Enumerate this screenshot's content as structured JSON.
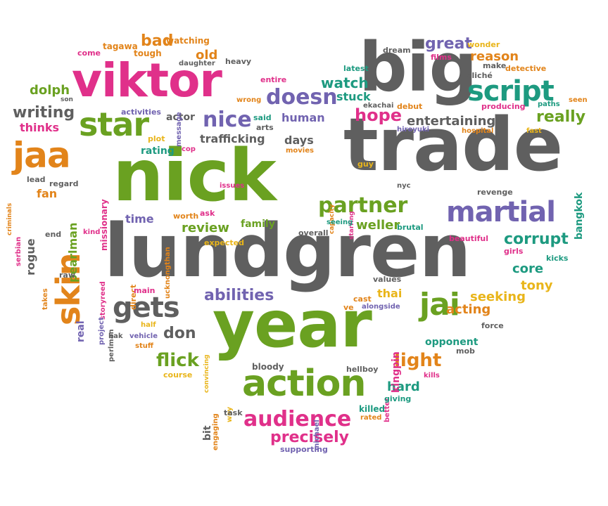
{
  "colors": {
    "gray": "#5f5f5f",
    "green": "#6aa121",
    "pink": "#e0308a",
    "purple": "#7163b0",
    "teal": "#1d9a80",
    "orange": "#e2841a",
    "yellow": "#e9b51a"
  },
  "words": [
    {
      "text": "viktor",
      "color": "pink"
    },
    {
      "text": "big",
      "color": "gray"
    },
    {
      "text": "trade",
      "color": "gray"
    },
    {
      "text": "nick",
      "color": "green"
    },
    {
      "text": "lundgren",
      "color": "gray"
    },
    {
      "text": "year",
      "color": "green"
    },
    {
      "text": "action",
      "color": "green"
    },
    {
      "text": "jaa",
      "color": "orange"
    },
    {
      "text": "skin",
      "color": "orange"
    },
    {
      "text": "star",
      "color": "green"
    },
    {
      "text": "script",
      "color": "teal"
    },
    {
      "text": "martial",
      "color": "purple"
    },
    {
      "text": "gets",
      "color": "gray"
    },
    {
      "text": "jai",
      "color": "green"
    },
    {
      "text": "audience",
      "color": "pink"
    },
    {
      "text": "partner",
      "color": "green"
    },
    {
      "text": "nice",
      "color": "purple"
    },
    {
      "text": "doesn",
      "color": "purple"
    },
    {
      "text": "hope",
      "color": "pink"
    },
    {
      "text": "flick",
      "color": "green"
    },
    {
      "text": "light",
      "color": "orange"
    },
    {
      "text": "abilities",
      "color": "purple"
    },
    {
      "text": "corrupt",
      "color": "teal"
    },
    {
      "text": "precisely",
      "color": "pink"
    },
    {
      "text": "really",
      "color": "green"
    },
    {
      "text": "writing",
      "color": "gray"
    },
    {
      "text": "great",
      "color": "purple"
    },
    {
      "text": "reason",
      "color": "orange"
    },
    {
      "text": "watch",
      "color": "teal"
    },
    {
      "text": "entertaining",
      "color": "gray"
    },
    {
      "text": "review",
      "color": "green"
    },
    {
      "text": "weller",
      "color": "green"
    },
    {
      "text": "don",
      "color": "gray"
    },
    {
      "text": "hard",
      "color": "teal"
    },
    {
      "text": "core",
      "color": "teal"
    },
    {
      "text": "tony",
      "color": "yellow"
    },
    {
      "text": "acting",
      "color": "orange"
    },
    {
      "text": "seeking",
      "color": "yellow"
    },
    {
      "text": "human",
      "color": "purple"
    },
    {
      "text": "days",
      "color": "gray"
    },
    {
      "text": "dolph",
      "color": "green"
    },
    {
      "text": "thinks",
      "color": "pink"
    },
    {
      "text": "bad",
      "color": "orange"
    },
    {
      "text": "old",
      "color": "orange"
    },
    {
      "text": "stuck",
      "color": "teal"
    },
    {
      "text": "trafficking",
      "color": "gray"
    },
    {
      "text": "rating",
      "color": "teal"
    },
    {
      "text": "actor",
      "color": "gray"
    },
    {
      "text": "time",
      "color": "purple"
    },
    {
      "text": "family",
      "color": "green"
    },
    {
      "text": "fan",
      "color": "orange"
    },
    {
      "text": "rogue",
      "color": "gray"
    },
    {
      "text": "pearlman",
      "color": "green"
    },
    {
      "text": "missionary",
      "color": "pink"
    },
    {
      "text": "bangkok",
      "color": "teal"
    },
    {
      "text": "thai",
      "color": "yellow"
    },
    {
      "text": "kingpin",
      "color": "pink"
    },
    {
      "text": "opponent",
      "color": "teal"
    },
    {
      "text": "real",
      "color": "purple"
    },
    {
      "text": "bit",
      "color": "gray"
    },
    {
      "text": "tagawa",
      "color": "orange"
    },
    {
      "text": "watching",
      "color": "orange"
    },
    {
      "text": "tough",
      "color": "orange"
    },
    {
      "text": "daughter",
      "color": "gray"
    },
    {
      "text": "heavy",
      "color": "gray"
    },
    {
      "text": "come",
      "color": "pink"
    },
    {
      "text": "entire",
      "color": "pink"
    },
    {
      "text": "son",
      "color": "gray"
    },
    {
      "text": "message",
      "color": "purple"
    },
    {
      "text": "wrong",
      "color": "orange"
    },
    {
      "text": "said",
      "color": "teal"
    },
    {
      "text": "arts",
      "color": "gray"
    },
    {
      "text": "activities",
      "color": "purple"
    },
    {
      "text": "latest",
      "color": "teal"
    },
    {
      "text": "dream",
      "color": "gray"
    },
    {
      "text": "films",
      "color": "pink"
    },
    {
      "text": "wonder",
      "color": "yellow"
    },
    {
      "text": "make",
      "color": "gray"
    },
    {
      "text": "detective",
      "color": "orange"
    },
    {
      "text": "cliché",
      "color": "gray"
    },
    {
      "text": "ekachai",
      "color": "gray"
    },
    {
      "text": "debut",
      "color": "orange"
    },
    {
      "text": "producing",
      "color": "pink"
    },
    {
      "text": "paths",
      "color": "teal"
    },
    {
      "text": "seen",
      "color": "orange"
    },
    {
      "text": "hiroyuki",
      "color": "purple"
    },
    {
      "text": "hospital",
      "color": "orange"
    },
    {
      "text": "fast",
      "color": "yellow"
    },
    {
      "text": "plot",
      "color": "yellow"
    },
    {
      "text": "cop",
      "color": "pink"
    },
    {
      "text": "movies",
      "color": "orange"
    },
    {
      "text": "capacity",
      "color": "orange"
    },
    {
      "text": "guy",
      "color": "yellow"
    },
    {
      "text": "starring",
      "color": "pink"
    },
    {
      "text": "nyc",
      "color": "gray"
    },
    {
      "text": "revenge",
      "color": "gray"
    },
    {
      "text": "criminals",
      "color": "orange"
    },
    {
      "text": "lead",
      "color": "gray"
    },
    {
      "text": "regard",
      "color": "gray"
    },
    {
      "text": "serbian",
      "color": "pink"
    },
    {
      "text": "issues",
      "color": "pink"
    },
    {
      "text": "worth",
      "color": "orange"
    },
    {
      "text": "ask",
      "color": "pink"
    },
    {
      "text": "ucknongthan",
      "color": "orange"
    },
    {
      "text": "seeing",
      "color": "teal"
    },
    {
      "text": "brutal",
      "color": "teal"
    },
    {
      "text": "beautiful",
      "color": "pink"
    },
    {
      "text": "end",
      "color": "gray"
    },
    {
      "text": "kind",
      "color": "pink"
    },
    {
      "text": "takes",
      "color": "orange"
    },
    {
      "text": "expected",
      "color": "yellow"
    },
    {
      "text": "overall",
      "color": "gray"
    },
    {
      "text": "girls",
      "color": "pink"
    },
    {
      "text": "kicks",
      "color": "teal"
    },
    {
      "text": "raw",
      "color": "gray"
    },
    {
      "text": "storyreed",
      "color": "pink"
    },
    {
      "text": "direct",
      "color": "orange"
    },
    {
      "text": "values",
      "color": "gray"
    },
    {
      "text": "main",
      "color": "pink"
    },
    {
      "text": "project",
      "color": "purple"
    },
    {
      "text": "perlman",
      "color": "gray"
    },
    {
      "text": "cast",
      "color": "orange"
    },
    {
      "text": "alongside",
      "color": "purple"
    },
    {
      "text": "ve",
      "color": "orange"
    },
    {
      "text": "half",
      "color": "yellow"
    },
    {
      "text": "convincing",
      "color": "yellow"
    },
    {
      "text": "bak",
      "color": "gray"
    },
    {
      "text": "vehicle",
      "color": "purple"
    },
    {
      "text": "stuff",
      "color": "orange"
    },
    {
      "text": "force",
      "color": "gray"
    },
    {
      "text": "mob",
      "color": "gray"
    },
    {
      "text": "hellboy",
      "color": "gray"
    },
    {
      "text": "better",
      "color": "pink"
    },
    {
      "text": "kills",
      "color": "pink"
    },
    {
      "text": "bloody",
      "color": "gray"
    },
    {
      "text": "course",
      "color": "yellow"
    },
    {
      "text": "engaging",
      "color": "orange"
    },
    {
      "text": "way",
      "color": "yellow"
    },
    {
      "text": "task",
      "color": "gray"
    },
    {
      "text": "michael",
      "color": "purple"
    },
    {
      "text": "killed",
      "color": "teal"
    },
    {
      "text": "giving",
      "color": "teal"
    },
    {
      "text": "rated",
      "color": "orange"
    },
    {
      "text": "supporting",
      "color": "purple"
    }
  ]
}
